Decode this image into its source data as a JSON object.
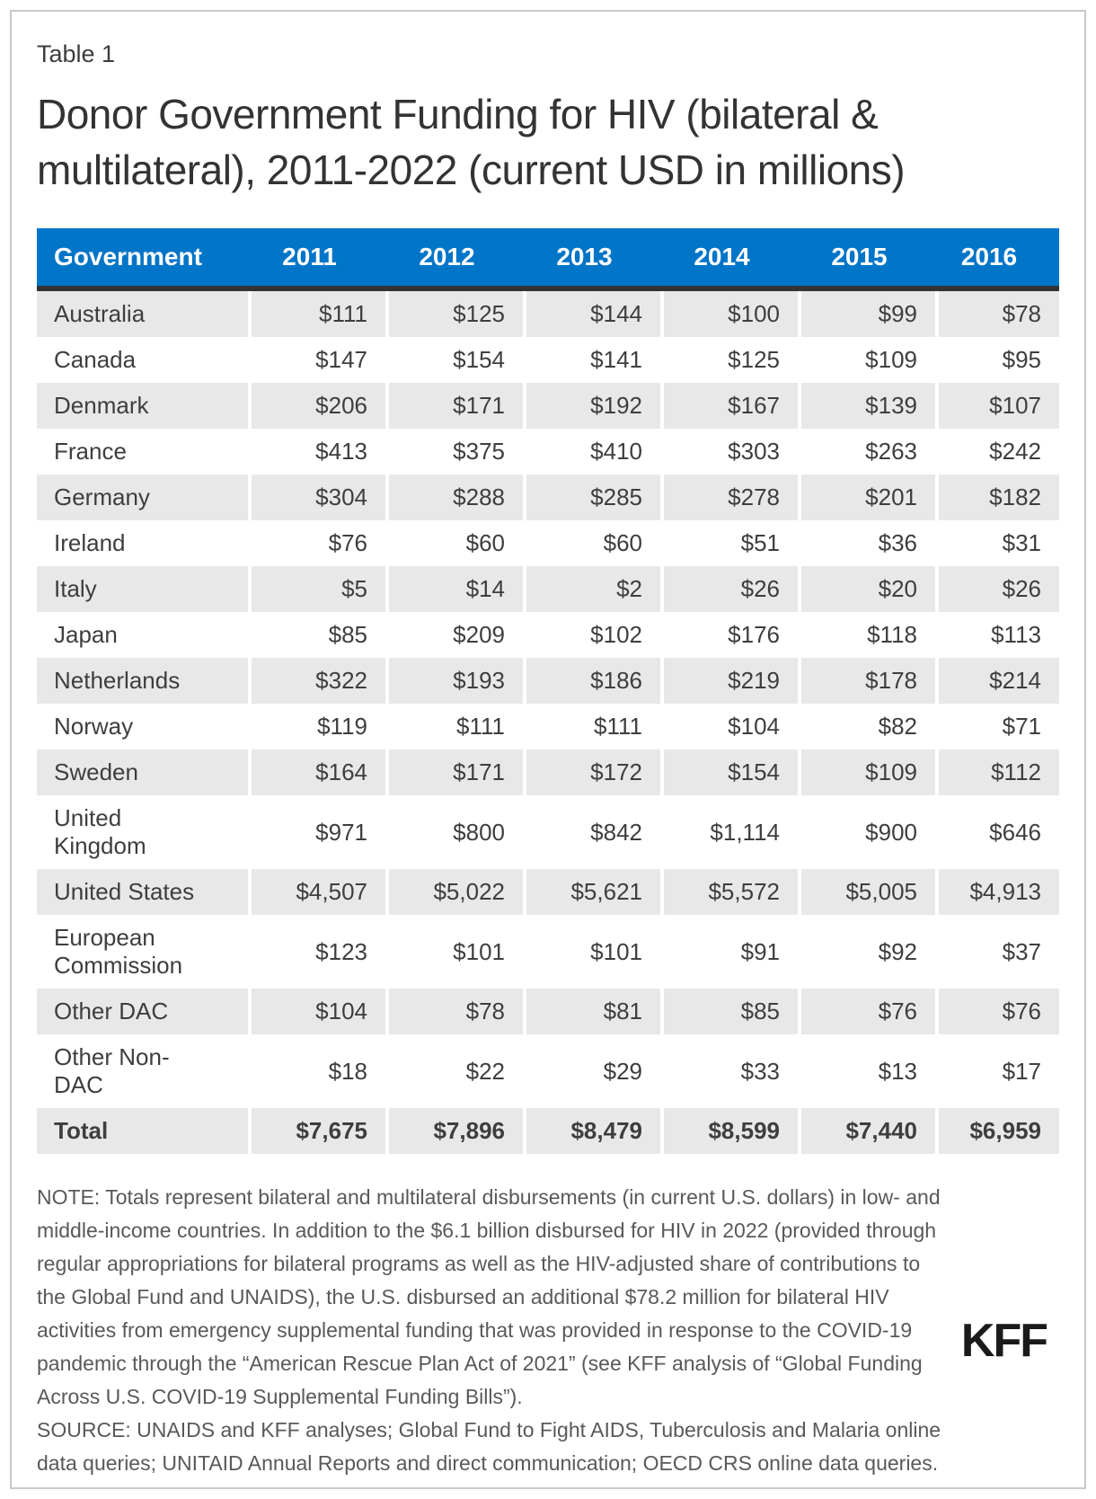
{
  "chart_data": {
    "type": "table",
    "label": "Table 1",
    "title": "Donor Government Funding for HIV (bilateral & multilateral), 2011-2022 (current USD in millions)",
    "columns": [
      "Government",
      "2011",
      "2012",
      "2013",
      "2014",
      "2015",
      "2016"
    ],
    "rows": [
      {
        "government": "Australia",
        "values": [
          "$111",
          "$125",
          "$144",
          "$100",
          "$99",
          "$78"
        ]
      },
      {
        "government": "Canada",
        "values": [
          "$147",
          "$154",
          "$141",
          "$125",
          "$109",
          "$95"
        ]
      },
      {
        "government": "Denmark",
        "values": [
          "$206",
          "$171",
          "$192",
          "$167",
          "$139",
          "$107"
        ]
      },
      {
        "government": "France",
        "values": [
          "$413",
          "$375",
          "$410",
          "$303",
          "$263",
          "$242"
        ]
      },
      {
        "government": "Germany",
        "values": [
          "$304",
          "$288",
          "$285",
          "$278",
          "$201",
          "$182"
        ]
      },
      {
        "government": "Ireland",
        "values": [
          "$76",
          "$60",
          "$60",
          "$51",
          "$36",
          "$31"
        ]
      },
      {
        "government": "Italy",
        "values": [
          "$5",
          "$14",
          "$2",
          "$26",
          "$20",
          "$26"
        ]
      },
      {
        "government": "Japan",
        "values": [
          "$85",
          "$209",
          "$102",
          "$176",
          "$118",
          "$113"
        ]
      },
      {
        "government": "Netherlands",
        "values": [
          "$322",
          "$193",
          "$186",
          "$219",
          "$178",
          "$214"
        ]
      },
      {
        "government": "Norway",
        "values": [
          "$119",
          "$111",
          "$111",
          "$104",
          "$82",
          "$71"
        ]
      },
      {
        "government": "Sweden",
        "values": [
          "$164",
          "$171",
          "$172",
          "$154",
          "$109",
          "$112"
        ]
      },
      {
        "government": "United Kingdom",
        "values": [
          "$971",
          "$800",
          "$842",
          "$1,114",
          "$900",
          "$646"
        ]
      },
      {
        "government": "United States",
        "values": [
          "$4,507",
          "$5,022",
          "$5,621",
          "$5,572",
          "$5,005",
          "$4,913"
        ]
      },
      {
        "government": "European Commission",
        "values": [
          "$123",
          "$101",
          "$101",
          "$91",
          "$92",
          "$37"
        ]
      },
      {
        "government": "Other DAC",
        "values": [
          "$104",
          "$78",
          "$81",
          "$85",
          "$76",
          "$76"
        ]
      },
      {
        "government": "Other Non-DAC",
        "values": [
          "$18",
          "$22",
          "$29",
          "$33",
          "$13",
          "$17"
        ]
      },
      {
        "government": "Total",
        "values": [
          "$7,675",
          "$7,896",
          "$8,479",
          "$8,599",
          "$7,440",
          "$6,959"
        ],
        "is_total": true
      }
    ],
    "note": "NOTE: Totals represent bilateral and multilateral disbursements (in current U.S. dollars) in low- and middle-income countries. In addition to the $6.1 billion disbursed for HIV in 2022 (provided through regular appropriations for bilateral programs as well as the HIV-adjusted share of contributions to the Global Fund and UNAIDS), the U.S. disbursed an additional $78.2 million for bilateral HIV activities from emergency supplemental funding that was provided in response to the COVID-19 pandemic through the “American Rescue Plan Act of 2021” (see KFF analysis of “Global Funding Across U.S. COVID-19 Supplemental Funding Bills”).",
    "source": "SOURCE: UNAIDS and KFF analyses; Global Fund to Fight AIDS, Tuberculosis and Malaria online data queries; UNITAID Annual Reports and direct communication; OECD CRS online data queries.",
    "logo": "KFF"
  },
  "colors": {
    "header_bg": "#0175c8",
    "header_text": "#ffffff",
    "header_rule": "#333333",
    "zebra_row": "#e8e8e8",
    "body_text": "#3e3e3e",
    "note_text": "#595959",
    "logo_text": "#1a1a1a",
    "frame_border": "#c9c9c9"
  }
}
